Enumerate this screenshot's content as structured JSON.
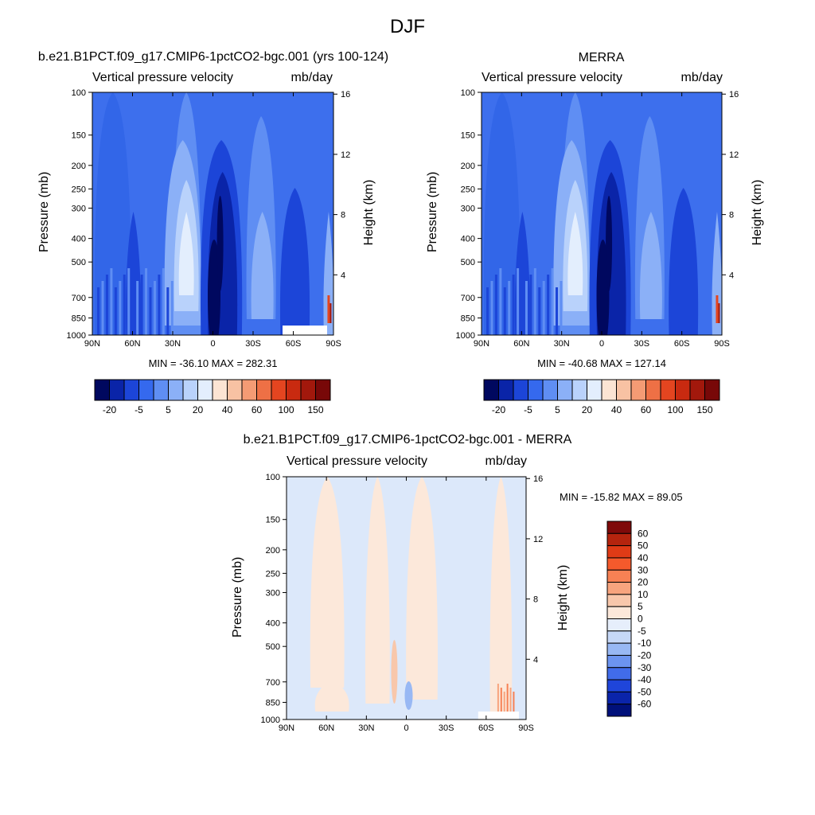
{
  "page": {
    "title": "DJF"
  },
  "panels": {
    "left": {
      "title": "b.e21.B1PCT.f09_g17.CMIP6-1pctCO2-bgc.001 (yrs 100-124)",
      "left_label": "Vertical pressure velocity",
      "right_label": "mb/day",
      "stats": "MIN = -36.10  MAX = 282.31"
    },
    "right": {
      "title": "MERRA",
      "left_label": "Vertical pressure velocity",
      "right_label": "mb/day",
      "stats": "MIN = -40.68  MAX = 127.14"
    },
    "diff": {
      "title": "b.e21.B1PCT.f09_g17.CMIP6-1pctCO2-bgc.001 - MERRA",
      "left_label": "Vertical pressure velocity",
      "right_label": "mb/day",
      "stats": "MIN = -15.82  MAX =  89.05"
    }
  },
  "chart_data": [
    {
      "type": "heatmap",
      "name": "model",
      "title": "b.e21.B1PCT.f09_g17.CMIP6-1pctCO2-bgc.001 (yrs 100-124)",
      "variable": "Vertical pressure velocity",
      "units": "mb/day",
      "ylabel": "Pressure (mb)",
      "y2label": "Height (km)",
      "x_ticks": [
        "90N",
        "60N",
        "30N",
        "0",
        "30S",
        "60S",
        "90S"
      ],
      "x_range": [
        90,
        -90
      ],
      "y_ticks": [
        "100",
        "150",
        "200",
        "250",
        "300",
        "400",
        "500",
        "700",
        "850",
        "1000"
      ],
      "y_range": [
        100,
        1000
      ],
      "y2_ticks": [
        "16",
        "12",
        "8",
        "4"
      ],
      "min": -36.1,
      "max": 282.31,
      "colorbar_labels": [
        "-20",
        "-5",
        "5",
        "20",
        "40",
        "60",
        "100",
        "150"
      ],
      "colorbar_colors": [
        "#00085f",
        "#0a24a8",
        "#1c45d8",
        "#3569ee",
        "#5f8ef3",
        "#8bb0f7",
        "#b9d2fb",
        "#e3eefd",
        "#fbe4d3",
        "#f8c2a3",
        "#f49b74",
        "#ee7045",
        "#e44520",
        "#c92a10",
        "#a2180c",
        "#780808"
      ]
    },
    {
      "type": "heatmap",
      "name": "obs",
      "title": "MERRA",
      "variable": "Vertical pressure velocity",
      "units": "mb/day",
      "ylabel": "Pressure (mb)",
      "y2label": "Height (km)",
      "x_ticks": [
        "90N",
        "60N",
        "30N",
        "0",
        "30S",
        "60S",
        "90S"
      ],
      "x_range": [
        90,
        -90
      ],
      "y_ticks": [
        "100",
        "150",
        "200",
        "250",
        "300",
        "400",
        "500",
        "700",
        "850",
        "1000"
      ],
      "y_range": [
        100,
        1000
      ],
      "y2_ticks": [
        "16",
        "12",
        "8",
        "4"
      ],
      "min": -40.68,
      "max": 127.14,
      "colorbar_labels": [
        "-20",
        "-5",
        "5",
        "20",
        "40",
        "60",
        "100",
        "150"
      ],
      "colorbar_colors": [
        "#00085f",
        "#0a24a8",
        "#1c45d8",
        "#3569ee",
        "#5f8ef3",
        "#8bb0f7",
        "#b9d2fb",
        "#e3eefd",
        "#fbe4d3",
        "#f8c2a3",
        "#f49b74",
        "#ee7045",
        "#e44520",
        "#c92a10",
        "#a2180c",
        "#780808"
      ]
    },
    {
      "type": "heatmap",
      "name": "difference",
      "title": "b.e21.B1PCT.f09_g17.CMIP6-1pctCO2-bgc.001 - MERRA",
      "variable": "Vertical pressure velocity",
      "units": "mb/day",
      "ylabel": "Pressure (mb)",
      "y2label": "Height (km)",
      "x_ticks": [
        "90N",
        "60N",
        "30N",
        "0",
        "30S",
        "60S",
        "90S"
      ],
      "x_range": [
        90,
        -90
      ],
      "y_ticks": [
        "100",
        "150",
        "200",
        "250",
        "300",
        "400",
        "500",
        "700",
        "850",
        "1000"
      ],
      "y_range": [
        100,
        1000
      ],
      "y2_ticks": [
        "16",
        "12",
        "8",
        "4"
      ],
      "min": -15.82,
      "max": 89.05,
      "colorbar_labels": [
        "60",
        "50",
        "40",
        "30",
        "20",
        "10",
        "5",
        "0",
        "-5",
        "-10",
        "-20",
        "-30",
        "-40",
        "-50",
        "-60"
      ],
      "colorbar_colors": [
        "#7f0a0a",
        "#b5240e",
        "#e03b16",
        "#f55a2c",
        "#f78154",
        "#f7a47e",
        "#f8c7ab",
        "#fce8da",
        "#e6eefb",
        "#c6d8f7",
        "#98b8f4",
        "#6c94f0",
        "#416cea",
        "#1f45da",
        "#0a24aa",
        "#00107a"
      ]
    }
  ]
}
